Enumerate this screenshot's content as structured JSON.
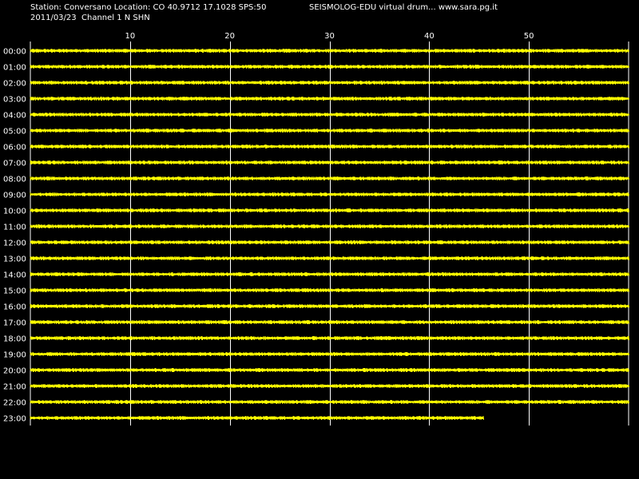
{
  "header": {
    "station_line": "Station: Conversano Location: CO 40.9712 17.1028 SPS:50",
    "date_line": "2011/03/23  Channel 1 N SHN",
    "source_line": "SEISMOLOG-EDU virtual drum... www.sara.pg.it"
  },
  "colors": {
    "background": "#000000",
    "trace": "#ffff00",
    "grid": "#ffffff",
    "text": "#ffffff"
  },
  "chart_data": {
    "type": "line",
    "title": "",
    "xlabel": "",
    "ylabel": "",
    "xlim": [
      0,
      60
    ],
    "x_ticks": [
      10,
      20,
      30,
      40,
      50
    ],
    "x_tick_labels": [
      "10",
      "20",
      "30",
      "40",
      "50"
    ],
    "grid": true,
    "rows": [
      {
        "label": "00:00",
        "end_minute": 60
      },
      {
        "label": "01:00",
        "end_minute": 60
      },
      {
        "label": "02:00",
        "end_minute": 60
      },
      {
        "label": "03:00",
        "end_minute": 60
      },
      {
        "label": "04:00",
        "end_minute": 60
      },
      {
        "label": "05:00",
        "end_minute": 60
      },
      {
        "label": "06:00",
        "end_minute": 60
      },
      {
        "label": "07:00",
        "end_minute": 60
      },
      {
        "label": "08:00",
        "end_minute": 60
      },
      {
        "label": "09:00",
        "end_minute": 60
      },
      {
        "label": "10:00",
        "end_minute": 60
      },
      {
        "label": "11:00",
        "end_minute": 60
      },
      {
        "label": "12:00",
        "end_minute": 60
      },
      {
        "label": "13:00",
        "end_minute": 60
      },
      {
        "label": "14:00",
        "end_minute": 60
      },
      {
        "label": "15:00",
        "end_minute": 60
      },
      {
        "label": "16:00",
        "end_minute": 60
      },
      {
        "label": "17:00",
        "end_minute": 60
      },
      {
        "label": "18:00",
        "end_minute": 60
      },
      {
        "label": "19:00",
        "end_minute": 60
      },
      {
        "label": "20:00",
        "end_minute": 60
      },
      {
        "label": "21:00",
        "end_minute": 60
      },
      {
        "label": "22:00",
        "end_minute": 60
      },
      {
        "label": "23:00",
        "end_minute": 45.5
      }
    ]
  }
}
